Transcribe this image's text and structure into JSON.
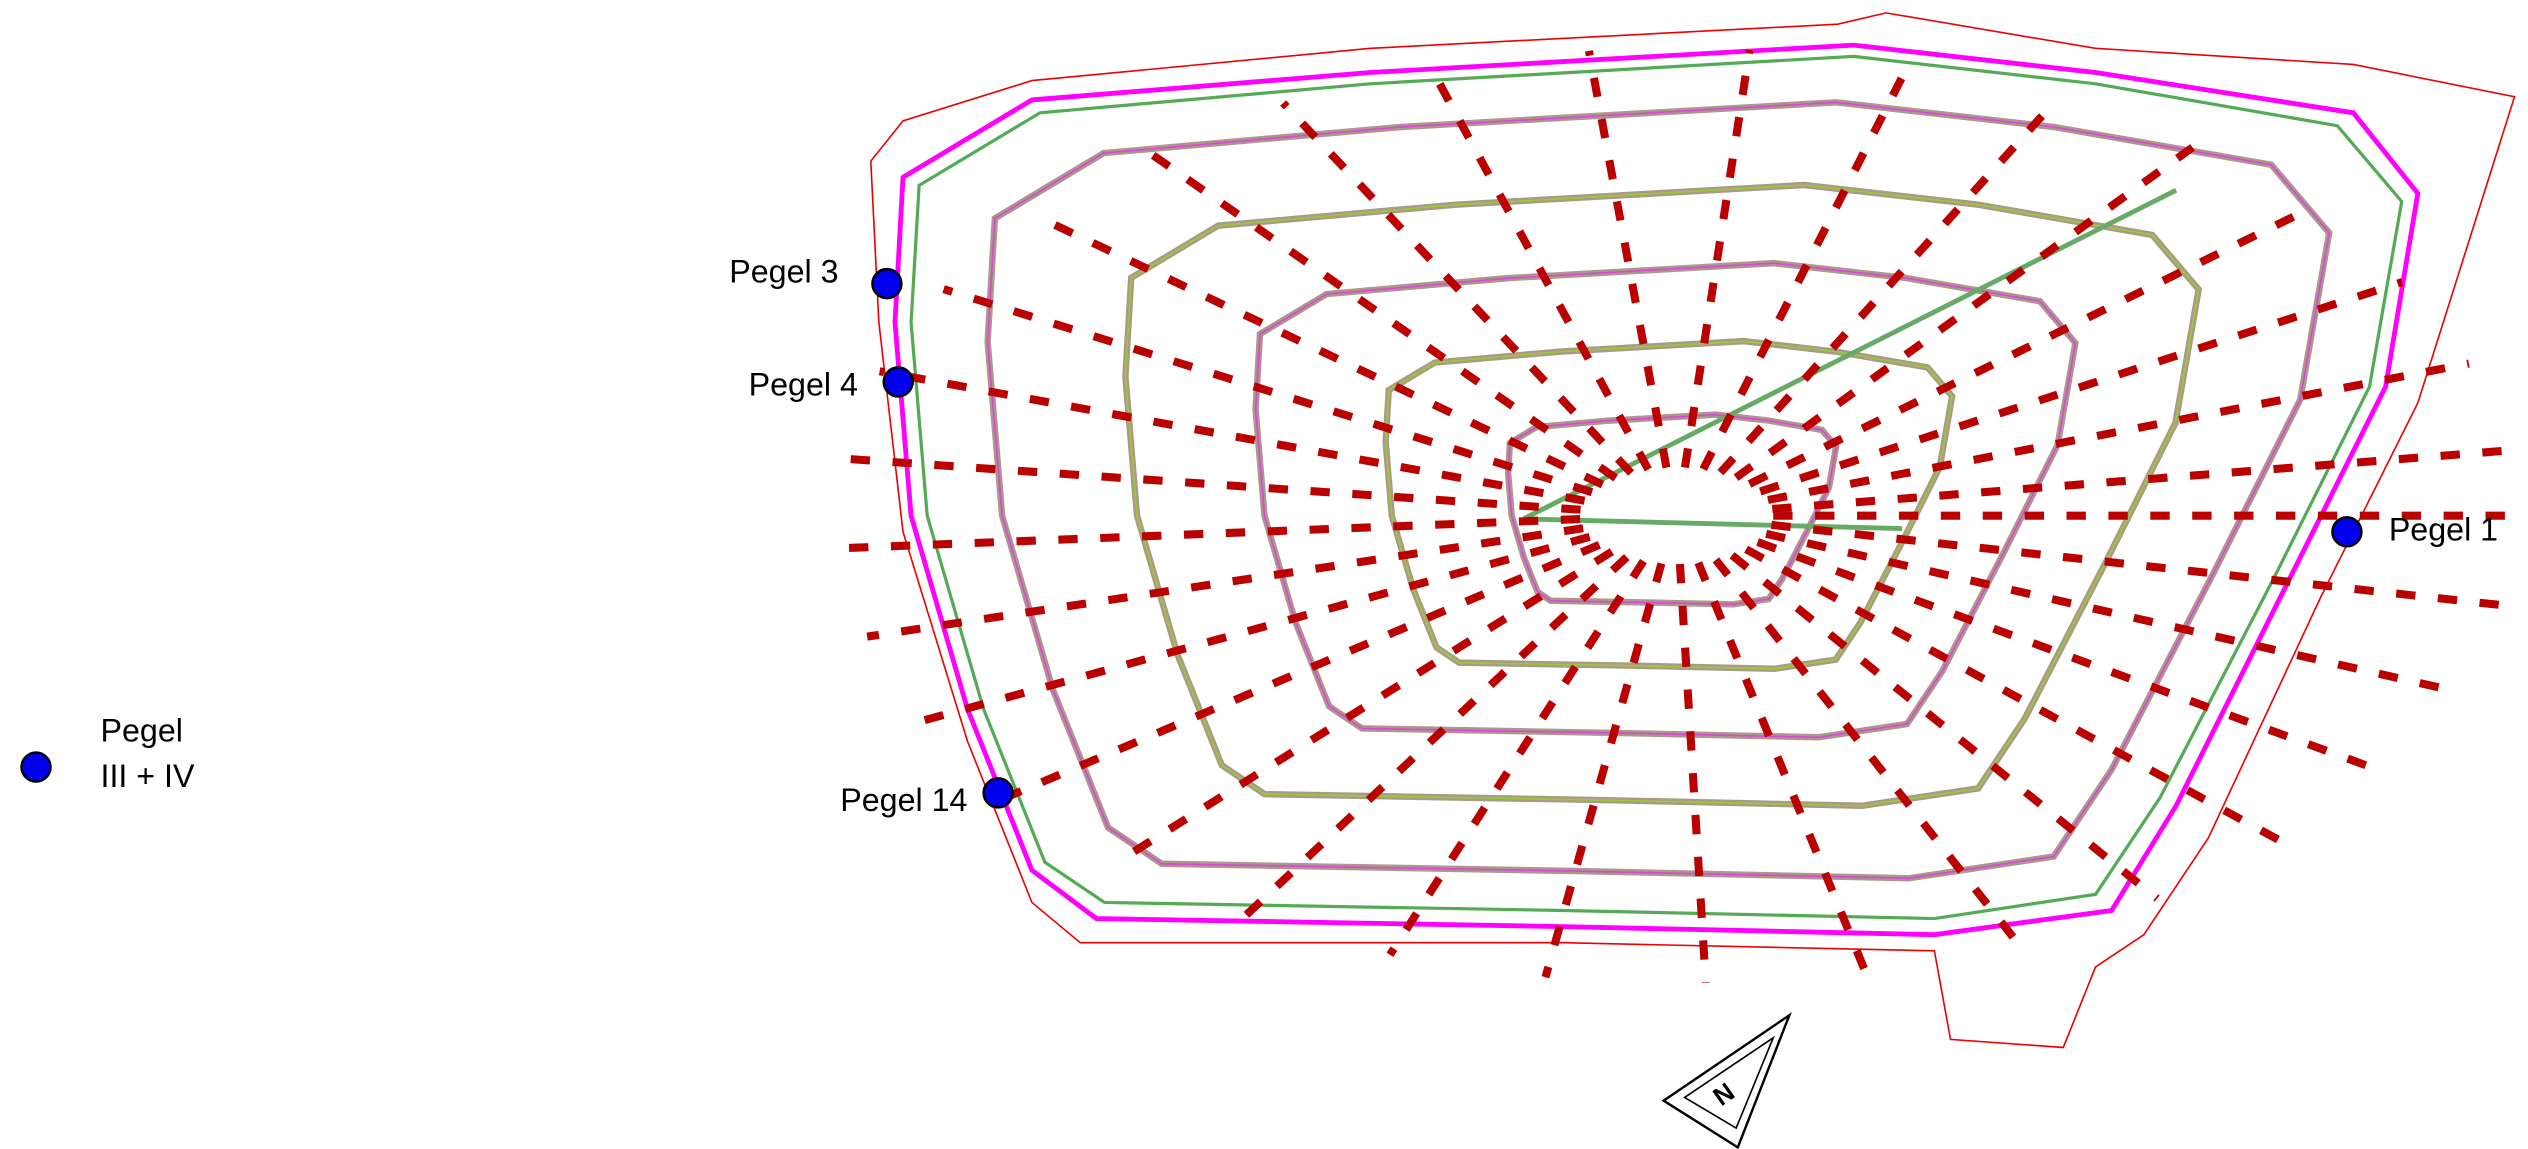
{
  "markers": [
    {
      "label": "Pegel 3"
    },
    {
      "label": "Pegel 4"
    },
    {
      "label": "Pegel 1"
    },
    {
      "label": "Pegel 14"
    }
  ],
  "legend": {
    "lines": [
      "Pegel",
      "III + IV"
    ]
  },
  "north_arrow": {
    "label": "N"
  }
}
